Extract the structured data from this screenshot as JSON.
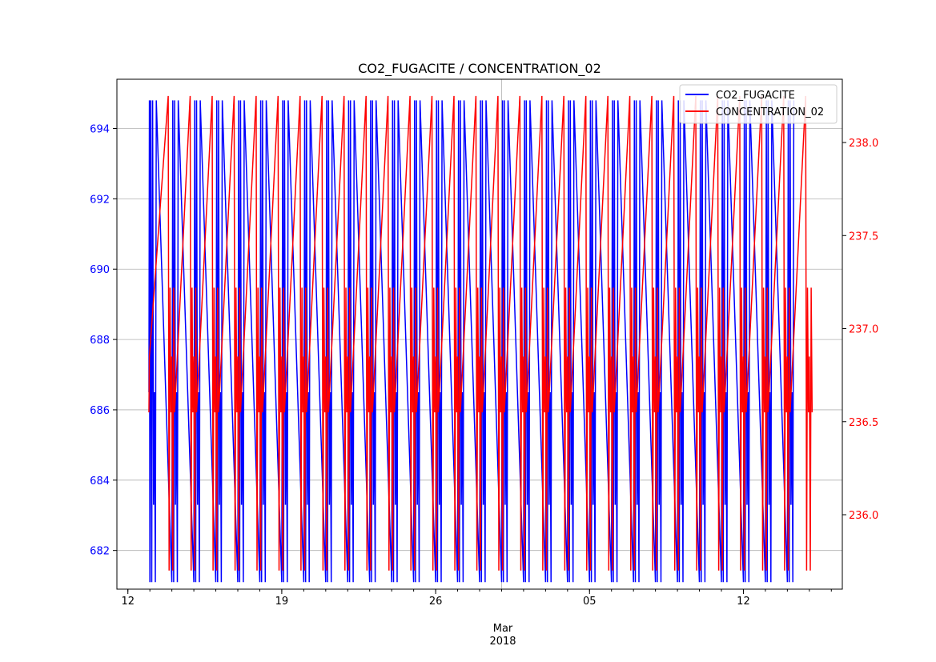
{
  "chart_data": {
    "type": "line",
    "title": "CO2_FUGACITE / CONCENTRATION_02",
    "xlabel_month": "Mar",
    "xlabel_year": "2018",
    "x_tick_labels": [
      "12",
      "19",
      "26",
      "05",
      "12"
    ],
    "x_tick_dates": [
      "2018-02-12",
      "2018-02-19",
      "2018-02-26",
      "2018-03-05",
      "2018-03-12"
    ],
    "xlim": [
      "2018-02-11 12:00",
      "2018-03-16 12:00"
    ],
    "x_gridline_date": "2018-03-01",
    "left_axis": {
      "series": "CO2_FUGACITE",
      "color": "#0000ff",
      "ticks": [
        "682",
        "684",
        "686",
        "688",
        "690",
        "692",
        "694"
      ],
      "ylim": [
        680.9,
        695.4
      ]
    },
    "right_axis": {
      "series": "CONCENTRATION_02",
      "color": "#ff0000",
      "ticks": [
        "236.0",
        "236.5",
        "237.0",
        "237.5",
        "238.0"
      ],
      "ylim": [
        235.6,
        238.34
      ]
    },
    "grid": "y-major (left axis) and one x line",
    "legend": "top-right",
    "series": [
      {
        "name": "CO2_FUGACITE",
        "color": "#0000ff",
        "axis": "left",
        "first_date": "2018-02-13",
        "days": 30,
        "daily_pattern_hours": [
          0,
          1,
          2,
          3,
          4,
          5,
          6,
          7
        ],
        "daily_pattern_values": [
          681.1,
          694.8,
          681.1,
          694.8,
          683.3,
          686.5,
          681.1,
          694.8
        ],
        "start_values": [
          686.5,
          694.8
        ]
      },
      {
        "name": "CONCENTRATION_02",
        "color": "#ff0000",
        "axis": "right",
        "first_date": "2018-02-13",
        "days": 30,
        "daily_pattern_hours": [
          20,
          21,
          22,
          23,
          24,
          25,
          26,
          27
        ],
        "daily_pattern_values": [
          238.25,
          235.7,
          237.22,
          236.55,
          236.85,
          235.7,
          237.22,
          236.55
        ],
        "start_values": [
          236.55,
          236.85
        ]
      }
    ]
  }
}
